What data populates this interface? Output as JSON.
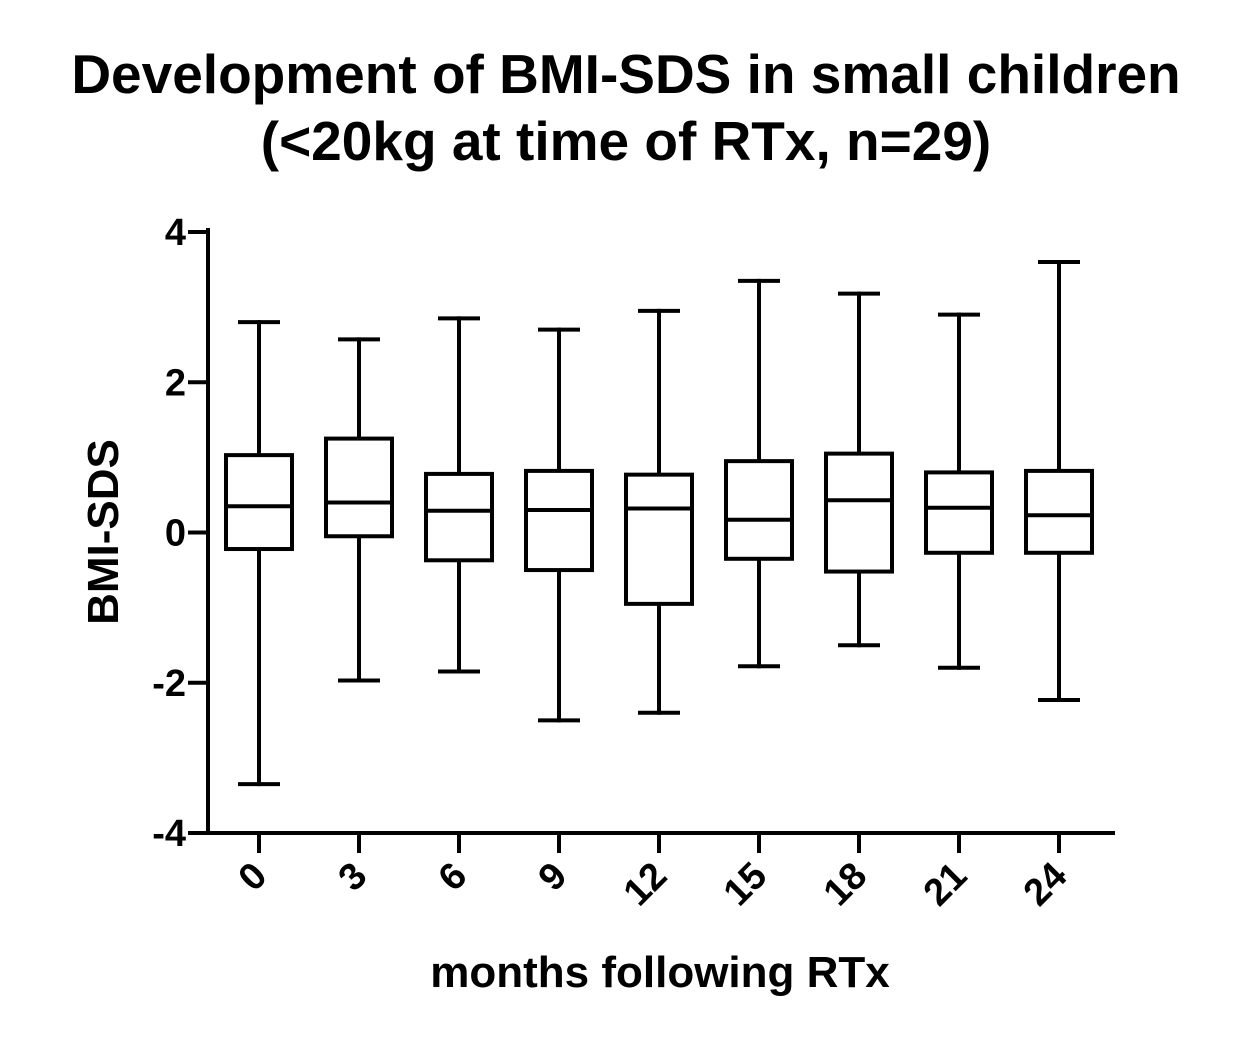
{
  "chart_data": {
    "type": "box",
    "title": "Development of BMI-SDS in small children",
    "subtitle": "(<20kg at time of RTx, n=29)",
    "xlabel": "months following RTx",
    "ylabel": "BMI-SDS",
    "ylim": [
      -4,
      4
    ],
    "yticks": [
      -4,
      -2,
      0,
      2,
      4
    ],
    "y_tick_labels": [
      "-4",
      "-2",
      "0",
      "2",
      "4"
    ],
    "grid": false,
    "categories": [
      "0",
      "3",
      "6",
      "9",
      "12",
      "15",
      "18",
      "21",
      "24"
    ],
    "boxes": [
      {
        "category": "0",
        "min": -3.35,
        "q1": -0.22,
        "median": 0.35,
        "q3": 1.03,
        "max": 2.8
      },
      {
        "category": "3",
        "min": -1.97,
        "q1": -0.05,
        "median": 0.4,
        "q3": 1.25,
        "max": 2.57
      },
      {
        "category": "6",
        "min": -1.85,
        "q1": -0.37,
        "median": 0.29,
        "q3": 0.78,
        "max": 2.85
      },
      {
        "category": "9",
        "min": -2.5,
        "q1": -0.5,
        "median": 0.3,
        "q3": 0.82,
        "max": 2.7
      },
      {
        "category": "12",
        "min": -2.4,
        "q1": -0.95,
        "median": 0.32,
        "q3": 0.77,
        "max": 2.95
      },
      {
        "category": "15",
        "min": -1.78,
        "q1": -0.35,
        "median": 0.17,
        "q3": 0.95,
        "max": 3.35
      },
      {
        "category": "18",
        "min": -1.5,
        "q1": -0.52,
        "median": 0.43,
        "q3": 1.05,
        "max": 3.18
      },
      {
        "category": "21",
        "min": -1.8,
        "q1": -0.27,
        "median": 0.33,
        "q3": 0.8,
        "max": 2.9
      },
      {
        "category": "24",
        "min": -2.23,
        "q1": -0.27,
        "median": 0.23,
        "q3": 0.82,
        "max": 3.6
      }
    ]
  }
}
